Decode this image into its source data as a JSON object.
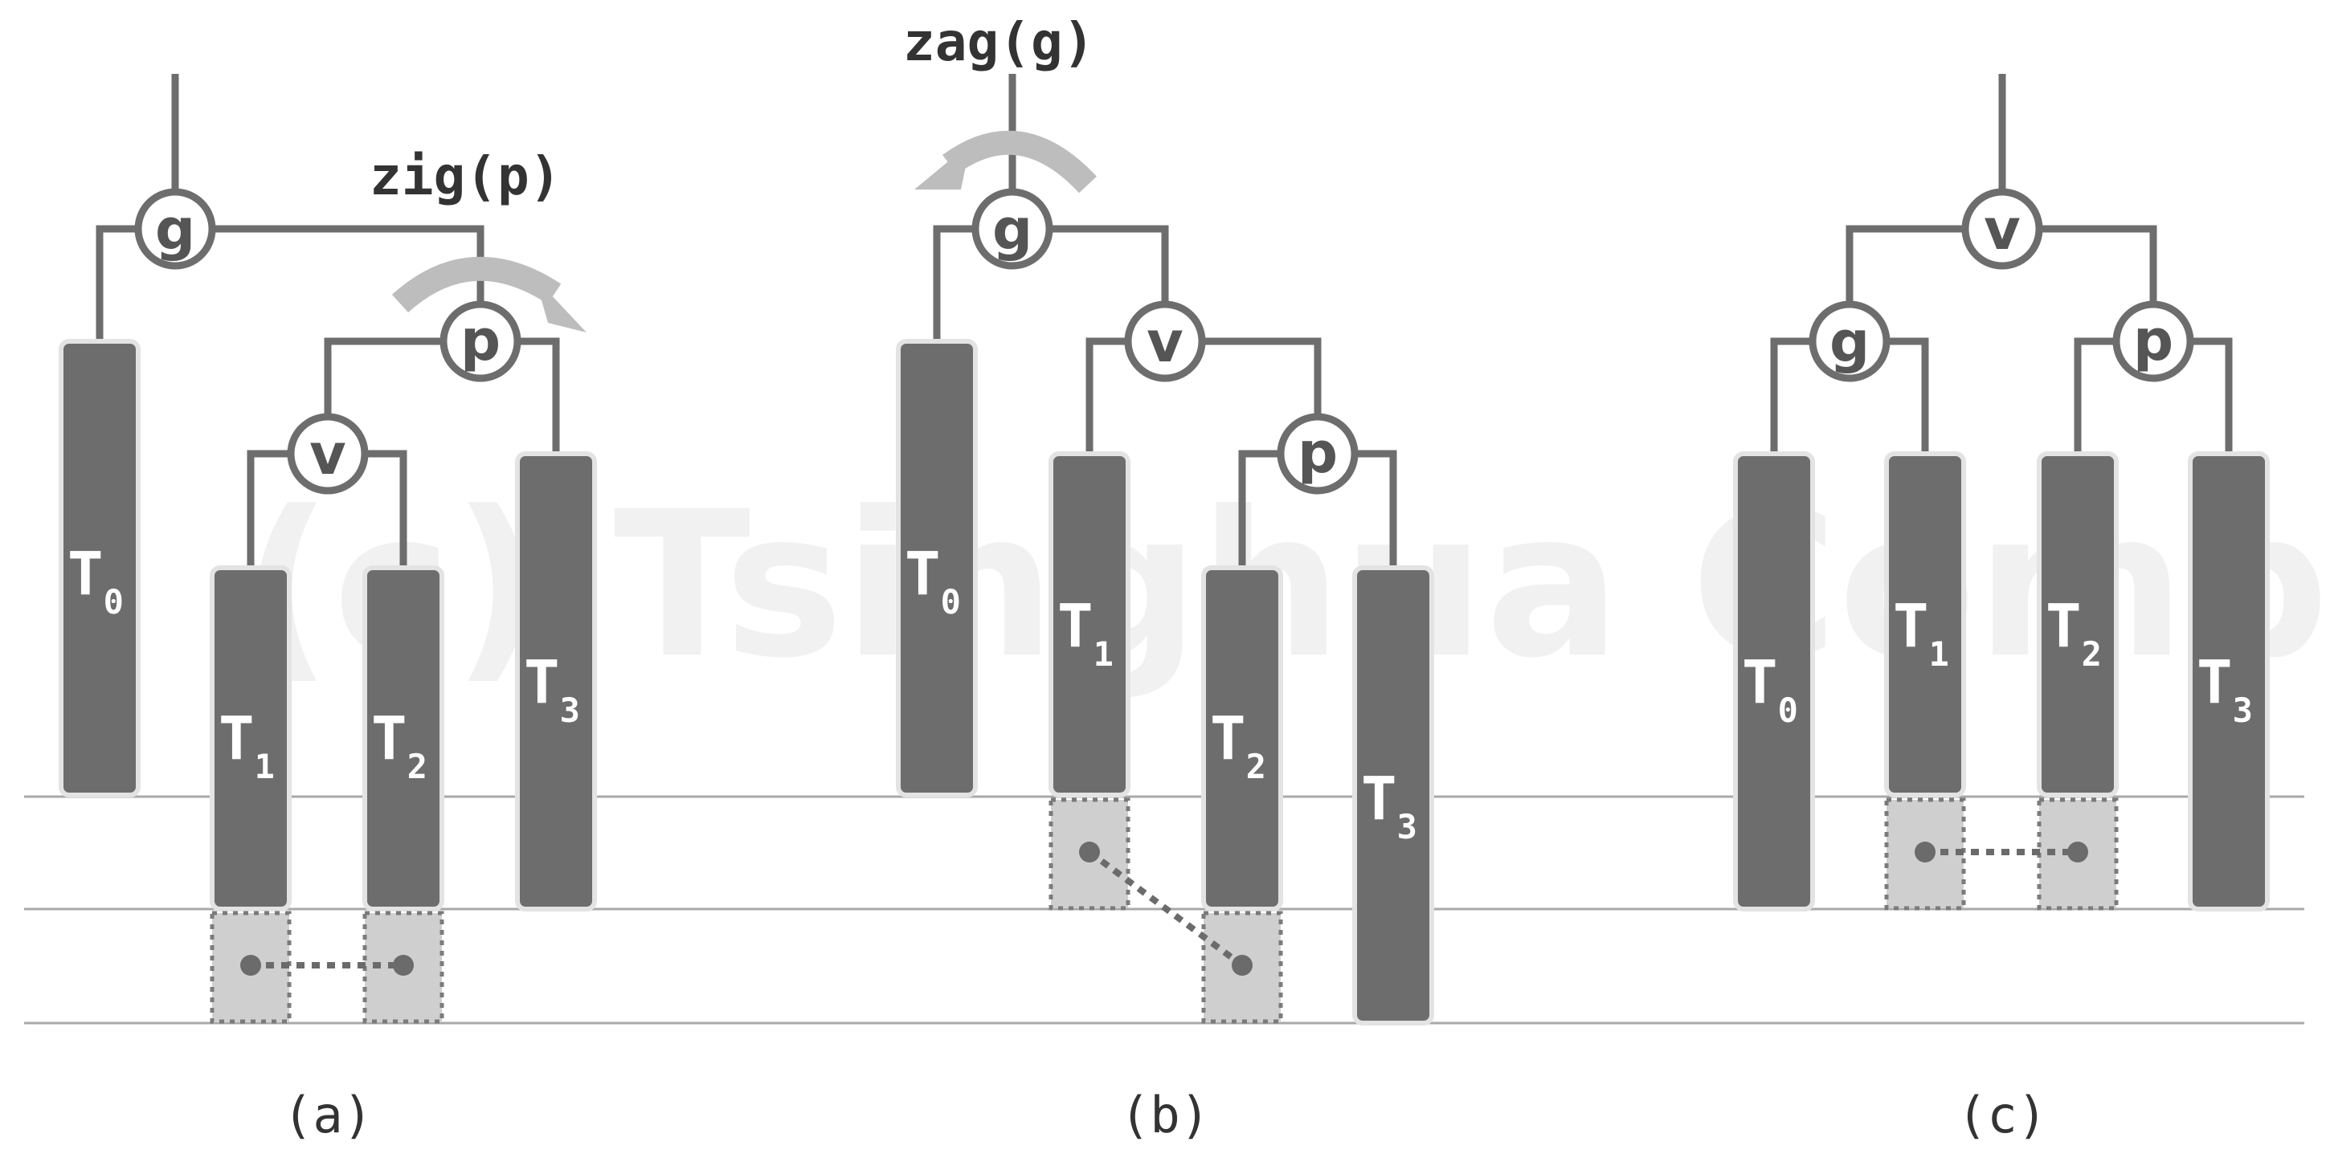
{
  "watermark": "(c) Tsinghua Computer",
  "panels": [
    {
      "caption": "(a)",
      "operation": "zig(p)",
      "nodes": {
        "g": "g",
        "p": "p",
        "v": "v"
      },
      "subtrees": [
        {
          "letter": "T",
          "index": "0"
        },
        {
          "letter": "T",
          "index": "1"
        },
        {
          "letter": "T",
          "index": "2"
        },
        {
          "letter": "T",
          "index": "3"
        }
      ]
    },
    {
      "caption": "(b)",
      "operation": "zag(g)",
      "nodes": {
        "g": "g",
        "v": "v",
        "p": "p"
      },
      "subtrees": [
        {
          "letter": "T",
          "index": "0"
        },
        {
          "letter": "T",
          "index": "1"
        },
        {
          "letter": "T",
          "index": "2"
        },
        {
          "letter": "T",
          "index": "3"
        }
      ]
    },
    {
      "caption": "(c)",
      "nodes": {
        "v": "v",
        "g": "g",
        "p": "p"
      },
      "subtrees": [
        {
          "letter": "T",
          "index": "0"
        },
        {
          "letter": "T",
          "index": "1"
        },
        {
          "letter": "T",
          "index": "2"
        },
        {
          "letter": "T",
          "index": "3"
        }
      ]
    }
  ]
}
